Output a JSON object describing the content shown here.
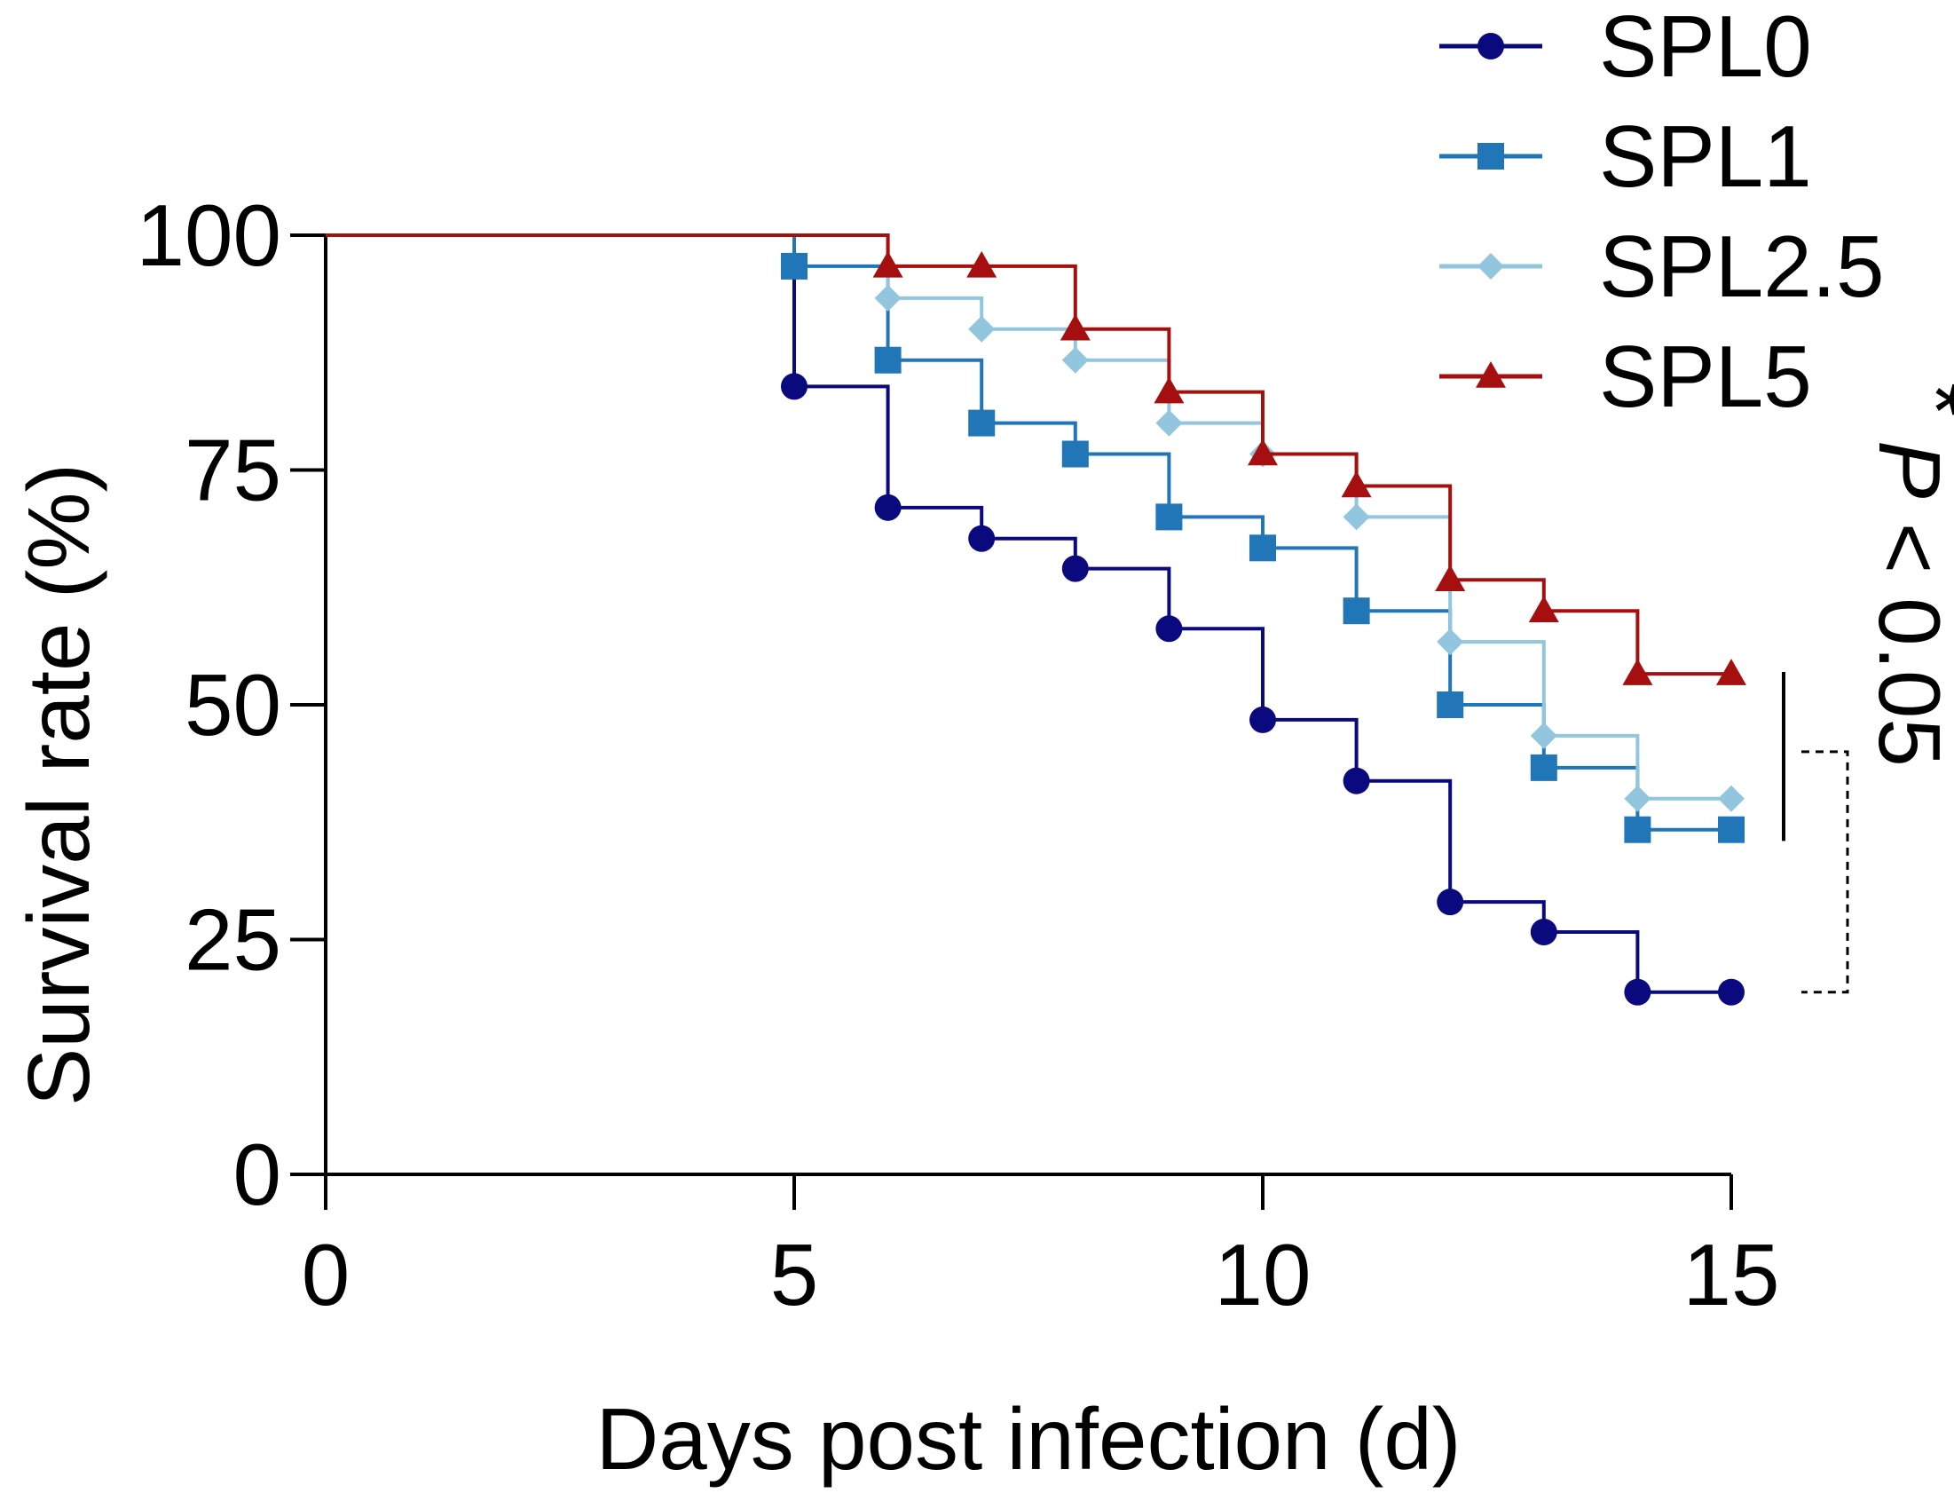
{
  "chart_data": {
    "type": "line",
    "step": true,
    "xlabel": "Days post infection (d)",
    "ylabel": "Survival rate (%)",
    "xlim": [
      0,
      15
    ],
    "ylim": [
      0,
      100
    ],
    "xticks": [
      "0",
      "5",
      "10",
      "15"
    ],
    "yticks": [
      "0",
      "25",
      "50",
      "75",
      "100"
    ],
    "grid": false,
    "legend_position": "top-right",
    "series": [
      {
        "name": "SPL0",
        "color": "#0a0a7e",
        "marker": "circle",
        "points": [
          [
            0,
            100
          ],
          [
            5,
            83.9
          ],
          [
            6,
            71
          ],
          [
            7,
            67.7
          ],
          [
            8,
            64.5
          ],
          [
            9,
            58.1
          ],
          [
            10,
            48.4
          ],
          [
            11,
            41.9
          ],
          [
            12,
            29
          ],
          [
            13,
            25.8
          ],
          [
            14,
            19.4
          ],
          [
            15,
            19.4
          ]
        ]
      },
      {
        "name": "SPL1",
        "color": "#2176b8",
        "marker": "square",
        "points": [
          [
            0,
            100
          ],
          [
            5,
            96.7
          ],
          [
            6,
            86.7
          ],
          [
            7,
            80
          ],
          [
            8,
            76.7
          ],
          [
            9,
            70
          ],
          [
            10,
            66.7
          ],
          [
            11,
            60
          ],
          [
            12,
            50
          ],
          [
            13,
            43.3
          ],
          [
            14,
            36.7
          ],
          [
            15,
            36.7
          ]
        ]
      },
      {
        "name": "SPL2.5",
        "color": "#92c5de",
        "marker": "diamond",
        "points": [
          [
            0,
            100
          ],
          [
            6,
            93.3
          ],
          [
            7,
            90
          ],
          [
            8,
            86.7
          ],
          [
            9,
            80
          ],
          [
            10,
            76.7
          ],
          [
            11,
            70
          ],
          [
            12,
            56.7
          ],
          [
            13,
            46.7
          ],
          [
            14,
            40
          ],
          [
            15,
            40
          ]
        ]
      },
      {
        "name": "SPL5",
        "color": "#a50f0f",
        "marker": "triangle",
        "points": [
          [
            0,
            100
          ],
          [
            6,
            96.7
          ],
          [
            7,
            96.7
          ],
          [
            8,
            90
          ],
          [
            9,
            83.3
          ],
          [
            10,
            76.7
          ],
          [
            11,
            73.3
          ],
          [
            12,
            63.3
          ],
          [
            13,
            60
          ],
          [
            14,
            53.3
          ],
          [
            15,
            53.3
          ]
        ]
      }
    ],
    "annotation": {
      "text_italic": "P",
      "text_rest": " < 0.05",
      "star": "*"
    }
  }
}
